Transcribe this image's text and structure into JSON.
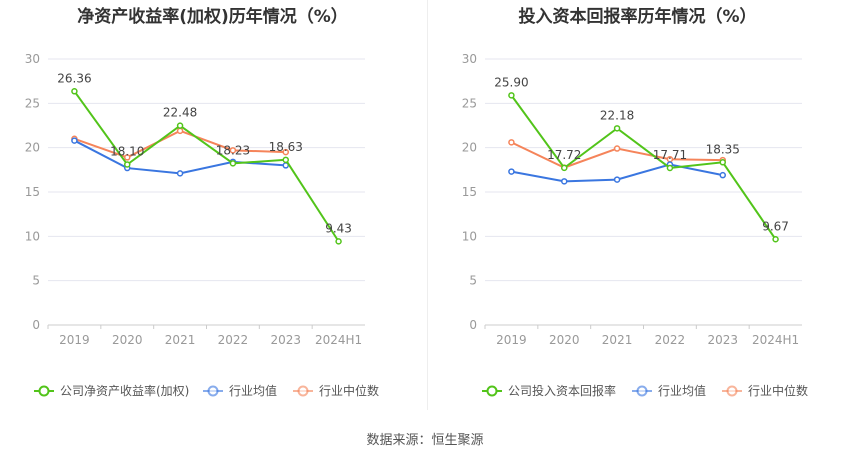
{
  "source": "数据来源：恒生聚源",
  "colors": {
    "company": "#52c41a",
    "avg": "#3a76e0",
    "median": "#f5845a",
    "grid": "#e4e6ef",
    "axis_text": "#999"
  },
  "chart_data": [
    {
      "type": "line",
      "title": "净资产收益率(加权)历年情况（%）",
      "categories": [
        "2019",
        "2020",
        "2021",
        "2022",
        "2023",
        "2024H1"
      ],
      "ylim": [
        0,
        30
      ],
      "yticks": [
        0,
        5,
        10,
        15,
        20,
        25,
        30
      ],
      "grid": true,
      "legend_position": "bottom",
      "series": [
        {
          "name": "公司净资产收益率(加权)",
          "values": [
            26.36,
            18.1,
            22.48,
            18.23,
            18.63,
            9.43
          ],
          "labels": [
            "26.36",
            "18.10",
            "22.48",
            "18.23",
            "18.63",
            "9.43"
          ]
        },
        {
          "name": "行业均值",
          "values": [
            20.8,
            17.7,
            17.1,
            18.4,
            18.0,
            null
          ]
        },
        {
          "name": "行业中位数",
          "values": [
            21.0,
            18.9,
            21.9,
            19.7,
            19.5,
            null
          ]
        }
      ]
    },
    {
      "type": "line",
      "title": "投入资本回报率历年情况（%）",
      "categories": [
        "2019",
        "2020",
        "2021",
        "2022",
        "2023",
        "2024H1"
      ],
      "ylim": [
        0,
        30
      ],
      "yticks": [
        0,
        5,
        10,
        15,
        20,
        25,
        30
      ],
      "grid": true,
      "legend_position": "bottom",
      "series": [
        {
          "name": "公司投入资本回报率",
          "values": [
            25.9,
            17.72,
            22.18,
            17.71,
            18.35,
            9.67
          ],
          "labels": [
            "25.90",
            "17.72",
            "22.18",
            "17.71",
            "18.35",
            "9.67"
          ]
        },
        {
          "name": "行业均值",
          "values": [
            17.3,
            16.2,
            16.4,
            18.1,
            16.9,
            null
          ]
        },
        {
          "name": "行业中位数",
          "values": [
            20.6,
            17.75,
            19.9,
            18.7,
            18.6,
            null
          ]
        }
      ]
    }
  ]
}
